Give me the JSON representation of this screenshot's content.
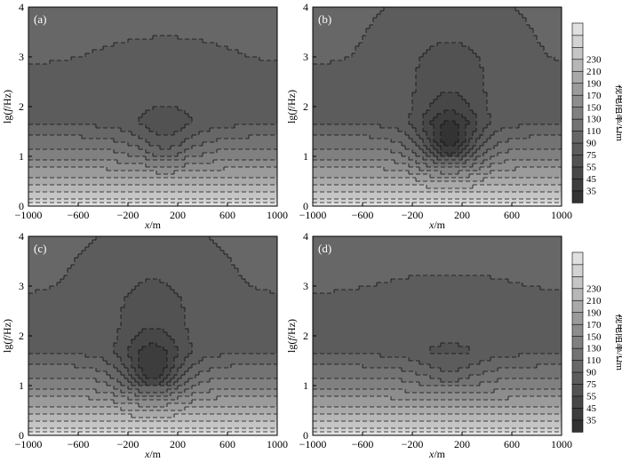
{
  "chart_data": [
    {
      "type": "heatmap",
      "panel_label": "(a)",
      "xlabel_var": "x",
      "xlabel_unit": "/m",
      "ylabel_pre": "lg(",
      "ylabel_var": "f",
      "ylabel_post": "/Hz)",
      "xticks": [
        "-1000",
        "-600",
        "-200",
        "200",
        "600",
        "1000"
      ],
      "yticks": [
        "0",
        "1",
        "2",
        "3",
        "4"
      ],
      "xlim": [
        -1000,
        1000
      ],
      "ylim": [
        0,
        4
      ],
      "anomaly": {
        "center_x": 100,
        "strength": 0.35,
        "width_x": 350
      }
    },
    {
      "type": "heatmap",
      "panel_label": "(b)",
      "xlabel_var": "x",
      "xlabel_unit": "/m",
      "ylabel_pre": "lg(",
      "ylabel_var": "f",
      "ylabel_post": "/Hz)",
      "xticks": [
        "-1000",
        "-600",
        "-200",
        "200",
        "600",
        "1000"
      ],
      "yticks": [
        "0",
        "1",
        "2",
        "3",
        "4"
      ],
      "xlim": [
        -1000,
        1000
      ],
      "ylim": [
        0,
        4
      ],
      "anomaly": {
        "center_x": 100,
        "strength": 1.0,
        "width_x": 300
      }
    },
    {
      "type": "heatmap",
      "panel_label": "(c)",
      "xlabel_var": "x",
      "xlabel_unit": "/m",
      "ylabel_pre": "lg(",
      "ylabel_var": "f",
      "ylabel_post": "/Hz)",
      "xticks": [
        "-1000",
        "-600",
        "-200",
        "200",
        "600",
        "1000"
      ],
      "yticks": [
        "0",
        "1",
        "2",
        "3",
        "4"
      ],
      "xlim": [
        -1000,
        1000
      ],
      "ylim": [
        0,
        4
      ],
      "anomaly": {
        "center_x": 0,
        "strength": 0.9,
        "width_x": 300
      }
    },
    {
      "type": "heatmap",
      "panel_label": "(d)",
      "xlabel_var": "x",
      "xlabel_unit": "/m",
      "ylabel_pre": "lg(",
      "ylabel_var": "f",
      "ylabel_post": "/Hz)",
      "xticks": [
        "-1000",
        "-600",
        "-200",
        "200",
        "600",
        "1000"
      ],
      "yticks": [
        "0",
        "1",
        "2",
        "3",
        "4"
      ],
      "xlim": [
        -1000,
        1000
      ],
      "ylim": [
        0,
        4
      ],
      "anomaly": {
        "center_x": 100,
        "strength": 0.25,
        "width_x": 380
      }
    }
  ],
  "colorbar": {
    "title": "视电阻率/Ωm",
    "levels": [
      "35",
      "45",
      "55",
      "75",
      "90",
      "110",
      "130",
      "150",
      "170",
      "190",
      "210",
      "230"
    ],
    "colors": [
      "#333333",
      "#3d3d3d",
      "#474747",
      "#525252",
      "#5c5c5c",
      "#676767",
      "#737373",
      "#808080",
      "#8d8d8d",
      "#9b9b9b",
      "#a9a9a9",
      "#b7b7b7",
      "#c5c5c5",
      "#d3d3d3",
      "#e0e0e0"
    ]
  }
}
